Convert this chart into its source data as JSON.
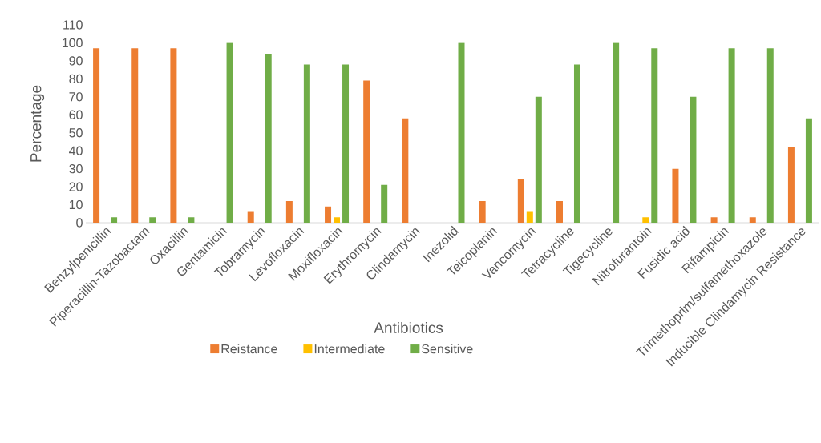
{
  "chart_data": {
    "type": "bar",
    "xlabel": "Antibiotics",
    "ylabel": "Percentage",
    "categories": [
      "Benzylpenicillin",
      "Piperacillin-Tazobactam",
      "Oxacillin",
      "Gentamicin",
      "Tobramycin",
      "Levofloxacin",
      "Moxifloxacin",
      "Erythromycin",
      "Clindamycin",
      "Inezolid",
      "Teicoplanin",
      "Vancomycin",
      "Tetracycline",
      "Tigecycline",
      "Nitrofurantoin",
      "Fusidic acid",
      "Rifampicin",
      "Trimethoprim/sulfamethoxazole",
      "Inducible Clindamycin Resistance"
    ],
    "series": [
      {
        "name": "Reistance",
        "color": "#ed7d31",
        "values": [
          97,
          97,
          97,
          null,
          6,
          12,
          9,
          79,
          58,
          null,
          12,
          24,
          12,
          null,
          null,
          30,
          3,
          3,
          42
        ]
      },
      {
        "name": "Intermediate",
        "color": "#ffc000",
        "values": [
          null,
          null,
          null,
          null,
          null,
          null,
          3,
          null,
          null,
          null,
          null,
          6,
          null,
          null,
          3,
          null,
          null,
          null,
          null
        ]
      },
      {
        "name": "Sensitive",
        "color": "#70ad47",
        "values": [
          3,
          3,
          3,
          100,
          94,
          88,
          88,
          21,
          null,
          100,
          null,
          70,
          88,
          100,
          97,
          70,
          97,
          97,
          58
        ]
      }
    ],
    "ylim": [
      0,
      110
    ],
    "yticks": [
      0,
      10,
      20,
      30,
      40,
      50,
      60,
      70,
      80,
      90,
      100,
      110
    ],
    "legend": "bottom"
  }
}
